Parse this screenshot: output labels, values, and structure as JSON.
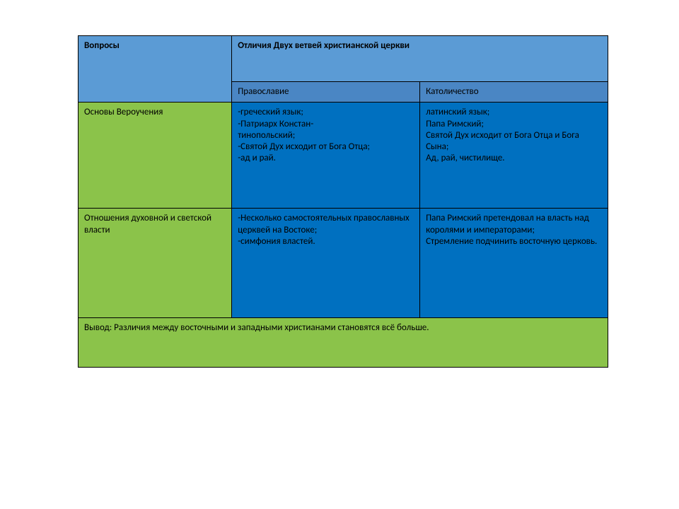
{
  "type": "table",
  "colors": {
    "header_bg": "#5b9bd5",
    "subheader_bg": "#4a86c4",
    "question_col_bg": "#8bc34a",
    "body_cell_bg": "#0070c0",
    "conclusion_bg": "#8bc34a",
    "border": "#000000",
    "text": "#000000",
    "page_bg": "#ffffff"
  },
  "typography": {
    "font_family": "Calibri, Arial, sans-serif",
    "base_fontsize": 13,
    "header_bold": true
  },
  "header": {
    "questions": "Вопросы",
    "differences": "Отличия Двух ветвей христианской церкви"
  },
  "subheader": {
    "left": "Православие",
    "right": "Католичество"
  },
  "rows": [
    {
      "question": "Основы Вероучения",
      "left": "-греческий  язык;\n-Патриарх  Констан-\nтинопольский;\n-Святой Дух исходит от Бога Отца;\n-ад и рай.",
      "right": "латинский  язык;\nПапа Римский;\nСвятой Дух исходит от Бога Отца  и Бога Сына;\nАд, рай, чистилище."
    },
    {
      "question": "Отношения духовной и светской власти",
      "left": "-Несколько самостоятельных православных церквей на Востоке;\n-симфония властей.",
      "right": "Папа Римский претендовал на власть над королями и императорами;\nСтремление подчинить восточную церковь."
    }
  ],
  "conclusion": "Вывод: Различия между восточными и западными христианами становятся всё больше."
}
